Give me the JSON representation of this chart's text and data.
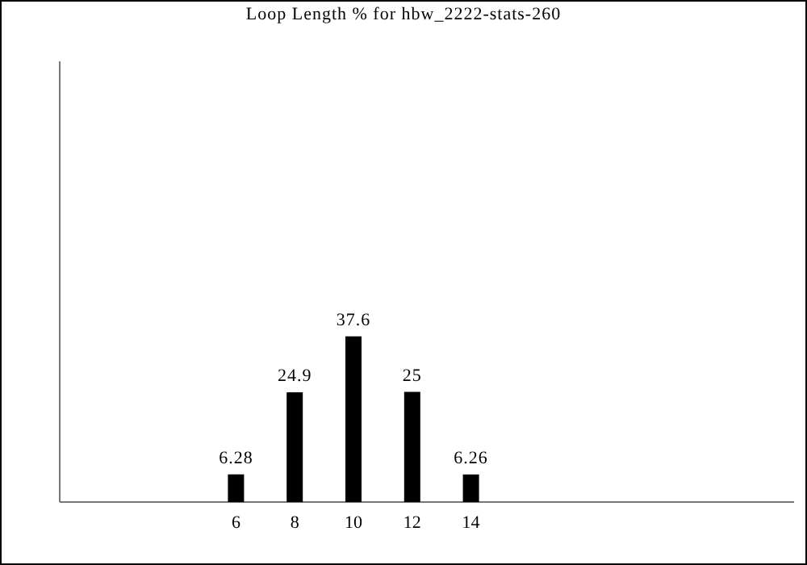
{
  "chart_data": {
    "type": "bar",
    "title": "Loop Length % for hbw_2222-stats-260",
    "x": [
      6,
      8,
      10,
      12,
      14
    ],
    "values": [
      6.28,
      24.9,
      37.6,
      25,
      6.26
    ],
    "color": "#000000",
    "xlim": [
      0,
      25
    ],
    "xticks": [
      6,
      8,
      10,
      12,
      14
    ],
    "ylim": [
      0,
      100
    ],
    "tick_labels": "x",
    "data_labels": true
  }
}
